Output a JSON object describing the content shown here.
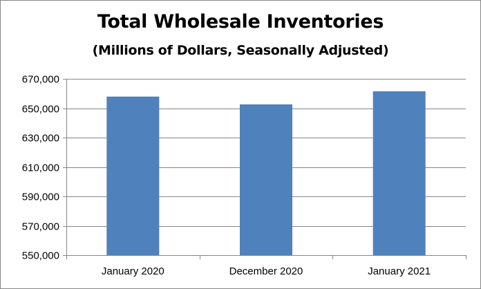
{
  "chart_data": {
    "type": "bar",
    "title": "Total Wholesale Inventories",
    "subtitle": "(Millions of Dollars, Seasonally Adjusted)",
    "categories": [
      "January 2020",
      "December 2020",
      "January 2021"
    ],
    "values": [
      657900,
      652600,
      661500
    ],
    "ylim": [
      550000,
      670000
    ],
    "yticks": [
      550000,
      570000,
      590000,
      610000,
      630000,
      650000,
      670000
    ],
    "ytick_labels": [
      "550,000",
      "570,000",
      "590,000",
      "610,000",
      "630,000",
      "650,000",
      "670,000"
    ],
    "grid": true,
    "legend": "none",
    "bar_color": "#4F81BD"
  }
}
